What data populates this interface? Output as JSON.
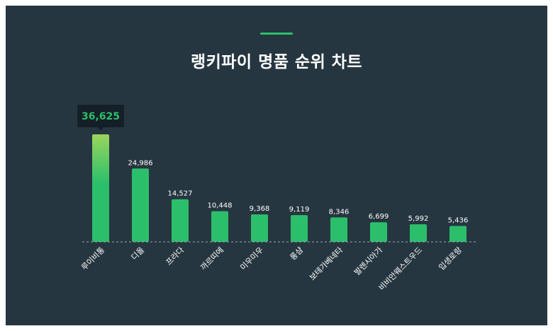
{
  "page": {
    "title": "랭키파이 명품 순위 차트"
  },
  "colors": {
    "background": "#263640",
    "bar": "#2cbf6b",
    "bar_top_highlight": "#9bd65c",
    "tooltip_bg": "#151f27",
    "tooltip_text": "#2cbf6b",
    "baseline": "#9aa7ae"
  },
  "chart_data": {
    "type": "bar",
    "title": "랭키파이 명품 순위 차트",
    "categories": [
      "루이비통",
      "디올",
      "프라다",
      "까르띠에",
      "미우미우",
      "롱샴",
      "보테가베네타",
      "발렌시아가",
      "비비안웨스트우드",
      "입생로랑"
    ],
    "values": [
      36625,
      24986,
      14527,
      10448,
      9368,
      9119,
      8346,
      6699,
      5992,
      5436
    ],
    "value_labels": [
      "36,625",
      "24,986",
      "14,527",
      "10,448",
      "9,368",
      "9,119",
      "8,346",
      "6,699",
      "5,992",
      "5,436"
    ],
    "highlight_index": 0,
    "ylim": [
      0,
      36625
    ],
    "grid": false,
    "xlabel": "",
    "ylabel": ""
  }
}
